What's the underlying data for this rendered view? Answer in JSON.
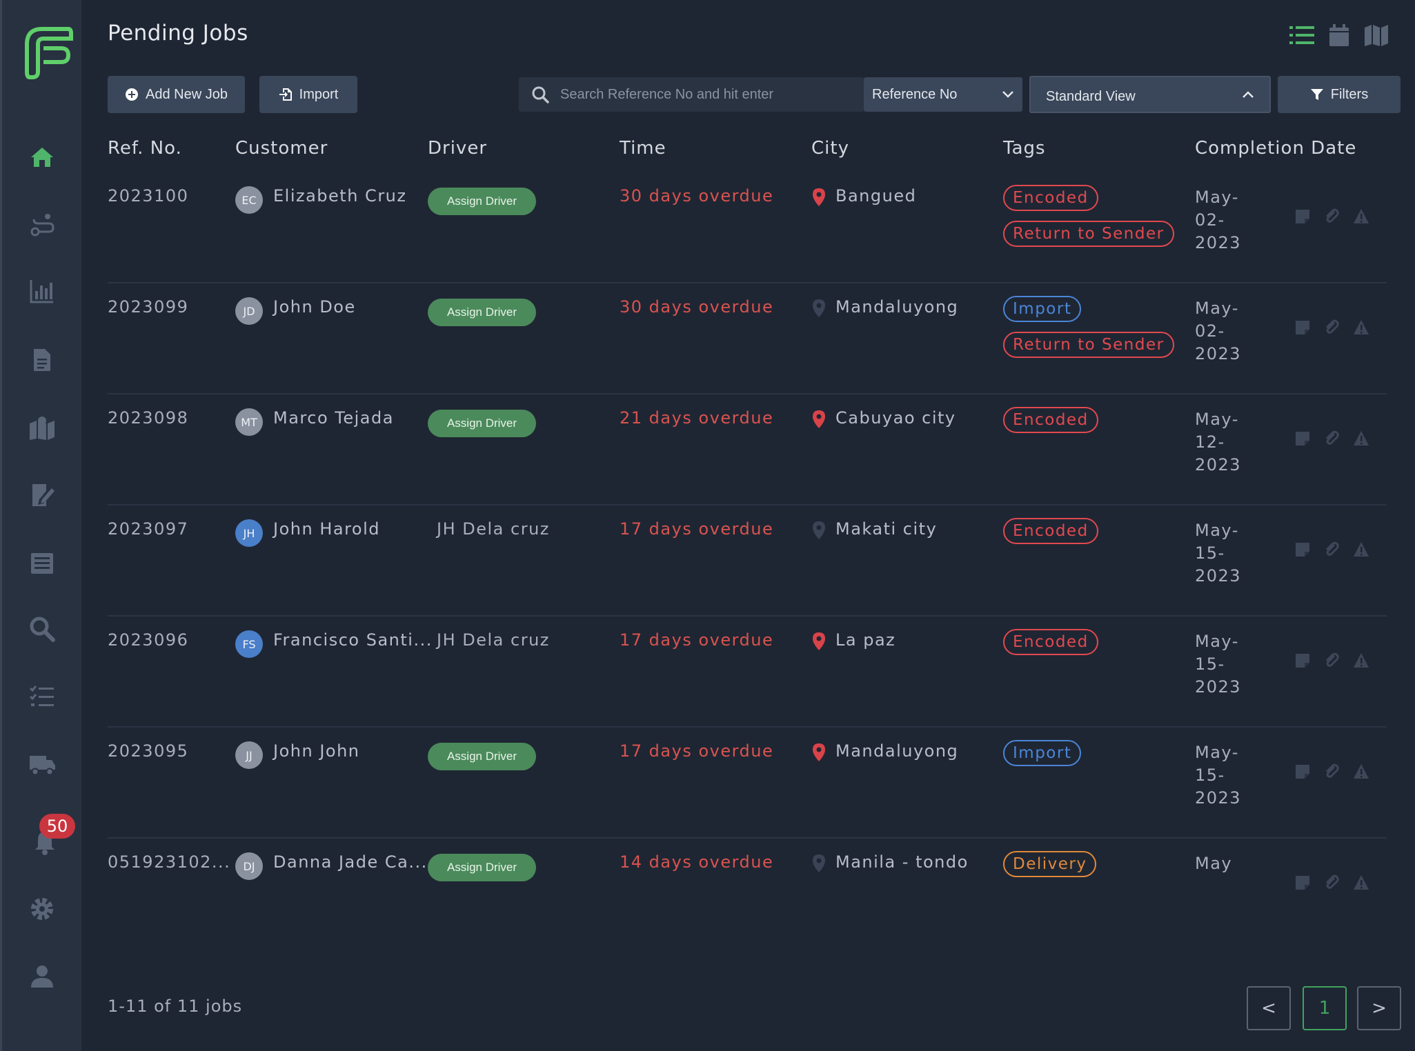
{
  "header": {
    "title": "Pending Jobs"
  },
  "toolbar": {
    "add_label": "Add New Job",
    "import_label": "Import",
    "search_placeholder": "Search Reference No and hit enter",
    "search_field": "Reference No",
    "view": "Standard View",
    "filters_label": "Filters"
  },
  "sidebar": {
    "notification_count": "50"
  },
  "table": {
    "headers": [
      "Ref. No.",
      "Customer",
      "Driver",
      "Time",
      "City",
      "Tags",
      "Completion Date"
    ],
    "assign_label": "Assign Driver",
    "rows": [
      {
        "ref": "2023100",
        "initials": "EC",
        "customer": "Elizabeth Cruz",
        "driver": "",
        "time": "30 days overdue",
        "city": "Bangued",
        "pin": "red",
        "tags": [
          {
            "label": "Encoded",
            "color": "red"
          },
          {
            "label": "Return to Sender",
            "color": "red"
          }
        ],
        "date": "May-02-2023"
      },
      {
        "ref": "2023099",
        "initials": "JD",
        "customer": "John Doe",
        "driver": "",
        "time": "30 days overdue",
        "city": "Mandaluyong",
        "pin": "dark",
        "tags": [
          {
            "label": "Import",
            "color": "blue"
          },
          {
            "label": "Return to Sender",
            "color": "red"
          }
        ],
        "date": "May-02-2023"
      },
      {
        "ref": "2023098",
        "initials": "MT",
        "customer": "Marco Tejada",
        "driver": "",
        "time": "21 days overdue",
        "city": "Cabuyao city",
        "pin": "red",
        "tags": [
          {
            "label": "Encoded",
            "color": "red"
          }
        ],
        "date": "May-12-2023"
      },
      {
        "ref": "2023097",
        "initials": "JH",
        "customer": "John Harold",
        "driver": "JH Dela cruz",
        "time": "17 days overdue",
        "city": "Makati city",
        "pin": "dark",
        "tags": [
          {
            "label": "Encoded",
            "color": "red"
          }
        ],
        "date": "May-15-2023"
      },
      {
        "ref": "2023096",
        "initials": "FS",
        "customer": "Francisco Santi...",
        "driver": "JH Dela cruz",
        "time": "17 days overdue",
        "city": "La paz",
        "pin": "red",
        "tags": [
          {
            "label": "Encoded",
            "color": "red"
          }
        ],
        "date": "May-15-2023"
      },
      {
        "ref": "2023095",
        "initials": "JJ",
        "customer": "John John",
        "driver": "",
        "time": "17 days overdue",
        "city": "Mandaluyong",
        "pin": "red",
        "tags": [
          {
            "label": "Import",
            "color": "blue"
          }
        ],
        "date": "May-15-2023"
      },
      {
        "ref": "051923102...",
        "initials": "DJ",
        "customer": "Danna Jade Ca...",
        "driver": "",
        "time": "14 days overdue",
        "city": "Manila - tondo",
        "pin": "dark",
        "tags": [
          {
            "label": "Delivery",
            "color": "orange"
          }
        ],
        "date": "May"
      }
    ]
  },
  "footer": {
    "count": "1-11 of 11 jobs",
    "page": "1",
    "prev": "<",
    "next": ">"
  },
  "colors": {
    "accent": "#3fa35e",
    "overdue": "#d9534f",
    "background": "#1f2633"
  }
}
